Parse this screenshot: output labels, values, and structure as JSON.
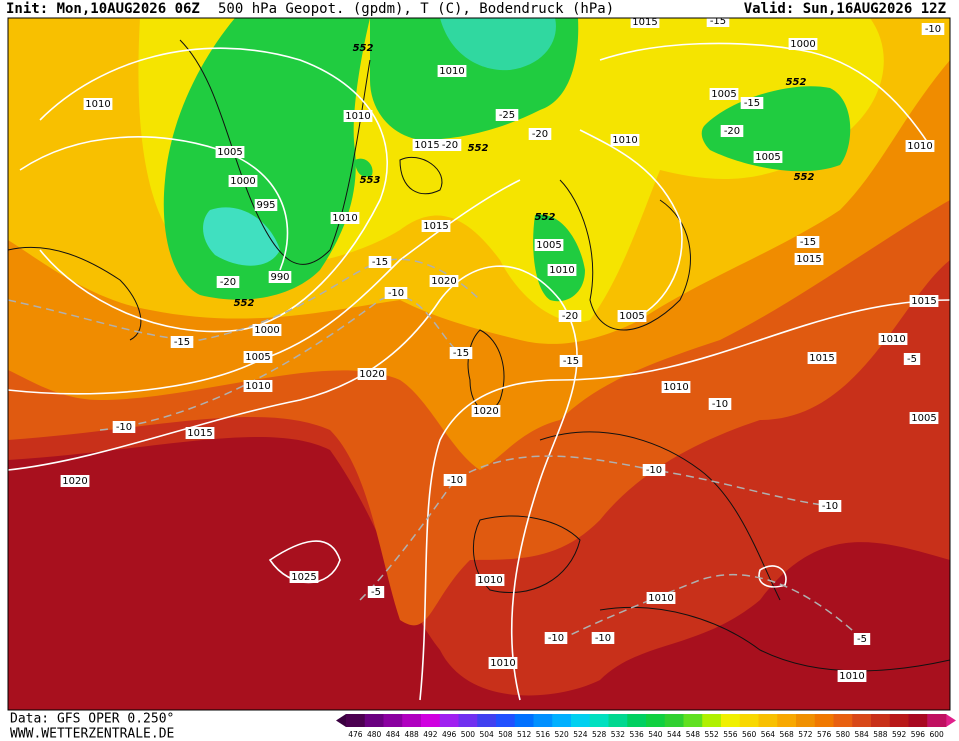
{
  "header": {
    "init": "Init: Mon,10AUG2026 06Z",
    "title": "500 hPa Geopot. (gpdm), T (C), Bodendruck (hPa)",
    "valid": "Valid: Sun,16AUG2026 12Z"
  },
  "footer": {
    "source": "Data: GFS OPER 0.250°",
    "site": "WWW.WETTERZENTRALE.DE"
  },
  "map_labels": [
    "1010",
    "1005",
    "1000",
    "995",
    "990",
    "-20",
    "552",
    "1000",
    "1005",
    "1010",
    "-15",
    "1015",
    "-10",
    "1020",
    "1025",
    "1010",
    "1010",
    "1015",
    "-20",
    "552",
    "552",
    "-25",
    "-20",
    "553",
    "1010",
    "1015",
    "1020",
    "-15",
    "-10",
    "-15",
    "1020",
    "1020",
    "-10",
    "-5",
    "1010",
    "1015",
    "1000",
    "552",
    "1005",
    "-15",
    "-20",
    "1005",
    "552",
    "1010",
    "1010",
    "552",
    "1005",
    "1010",
    "-20",
    "1005",
    "-15",
    "-15",
    "1015",
    "1015",
    "1010",
    "1015",
    "-5",
    "1010",
    "-10",
    "1005",
    "-10",
    "-10",
    "1010",
    "-10",
    "-10",
    "1010",
    "-5",
    "1010",
    "-10",
    "-15"
  ],
  "colorbar": {
    "labels": [
      476,
      480,
      484,
      488,
      492,
      496,
      500,
      504,
      508,
      512,
      516,
      520,
      524,
      528,
      532,
      536,
      540,
      544,
      548,
      552,
      556,
      560,
      564,
      568,
      572,
      576,
      580,
      584,
      588,
      592,
      596,
      600
    ],
    "colors": [
      "#4b0050",
      "#6a0080",
      "#8a00a0",
      "#b000c0",
      "#d000e0",
      "#a020f0",
      "#7030f0",
      "#4040f0",
      "#2050ff",
      "#0070ff",
      "#0090ff",
      "#00b0ff",
      "#00d0f0",
      "#00e0c0",
      "#00d890",
      "#00d060",
      "#10d040",
      "#30d030",
      "#60e020",
      "#b0f000",
      "#f0f000",
      "#f8d800",
      "#f8c000",
      "#f8a800",
      "#f09000",
      "#f07800",
      "#e86010",
      "#d84818",
      "#c83018",
      "#b81818",
      "#a80820",
      "#c01060"
    ]
  }
}
